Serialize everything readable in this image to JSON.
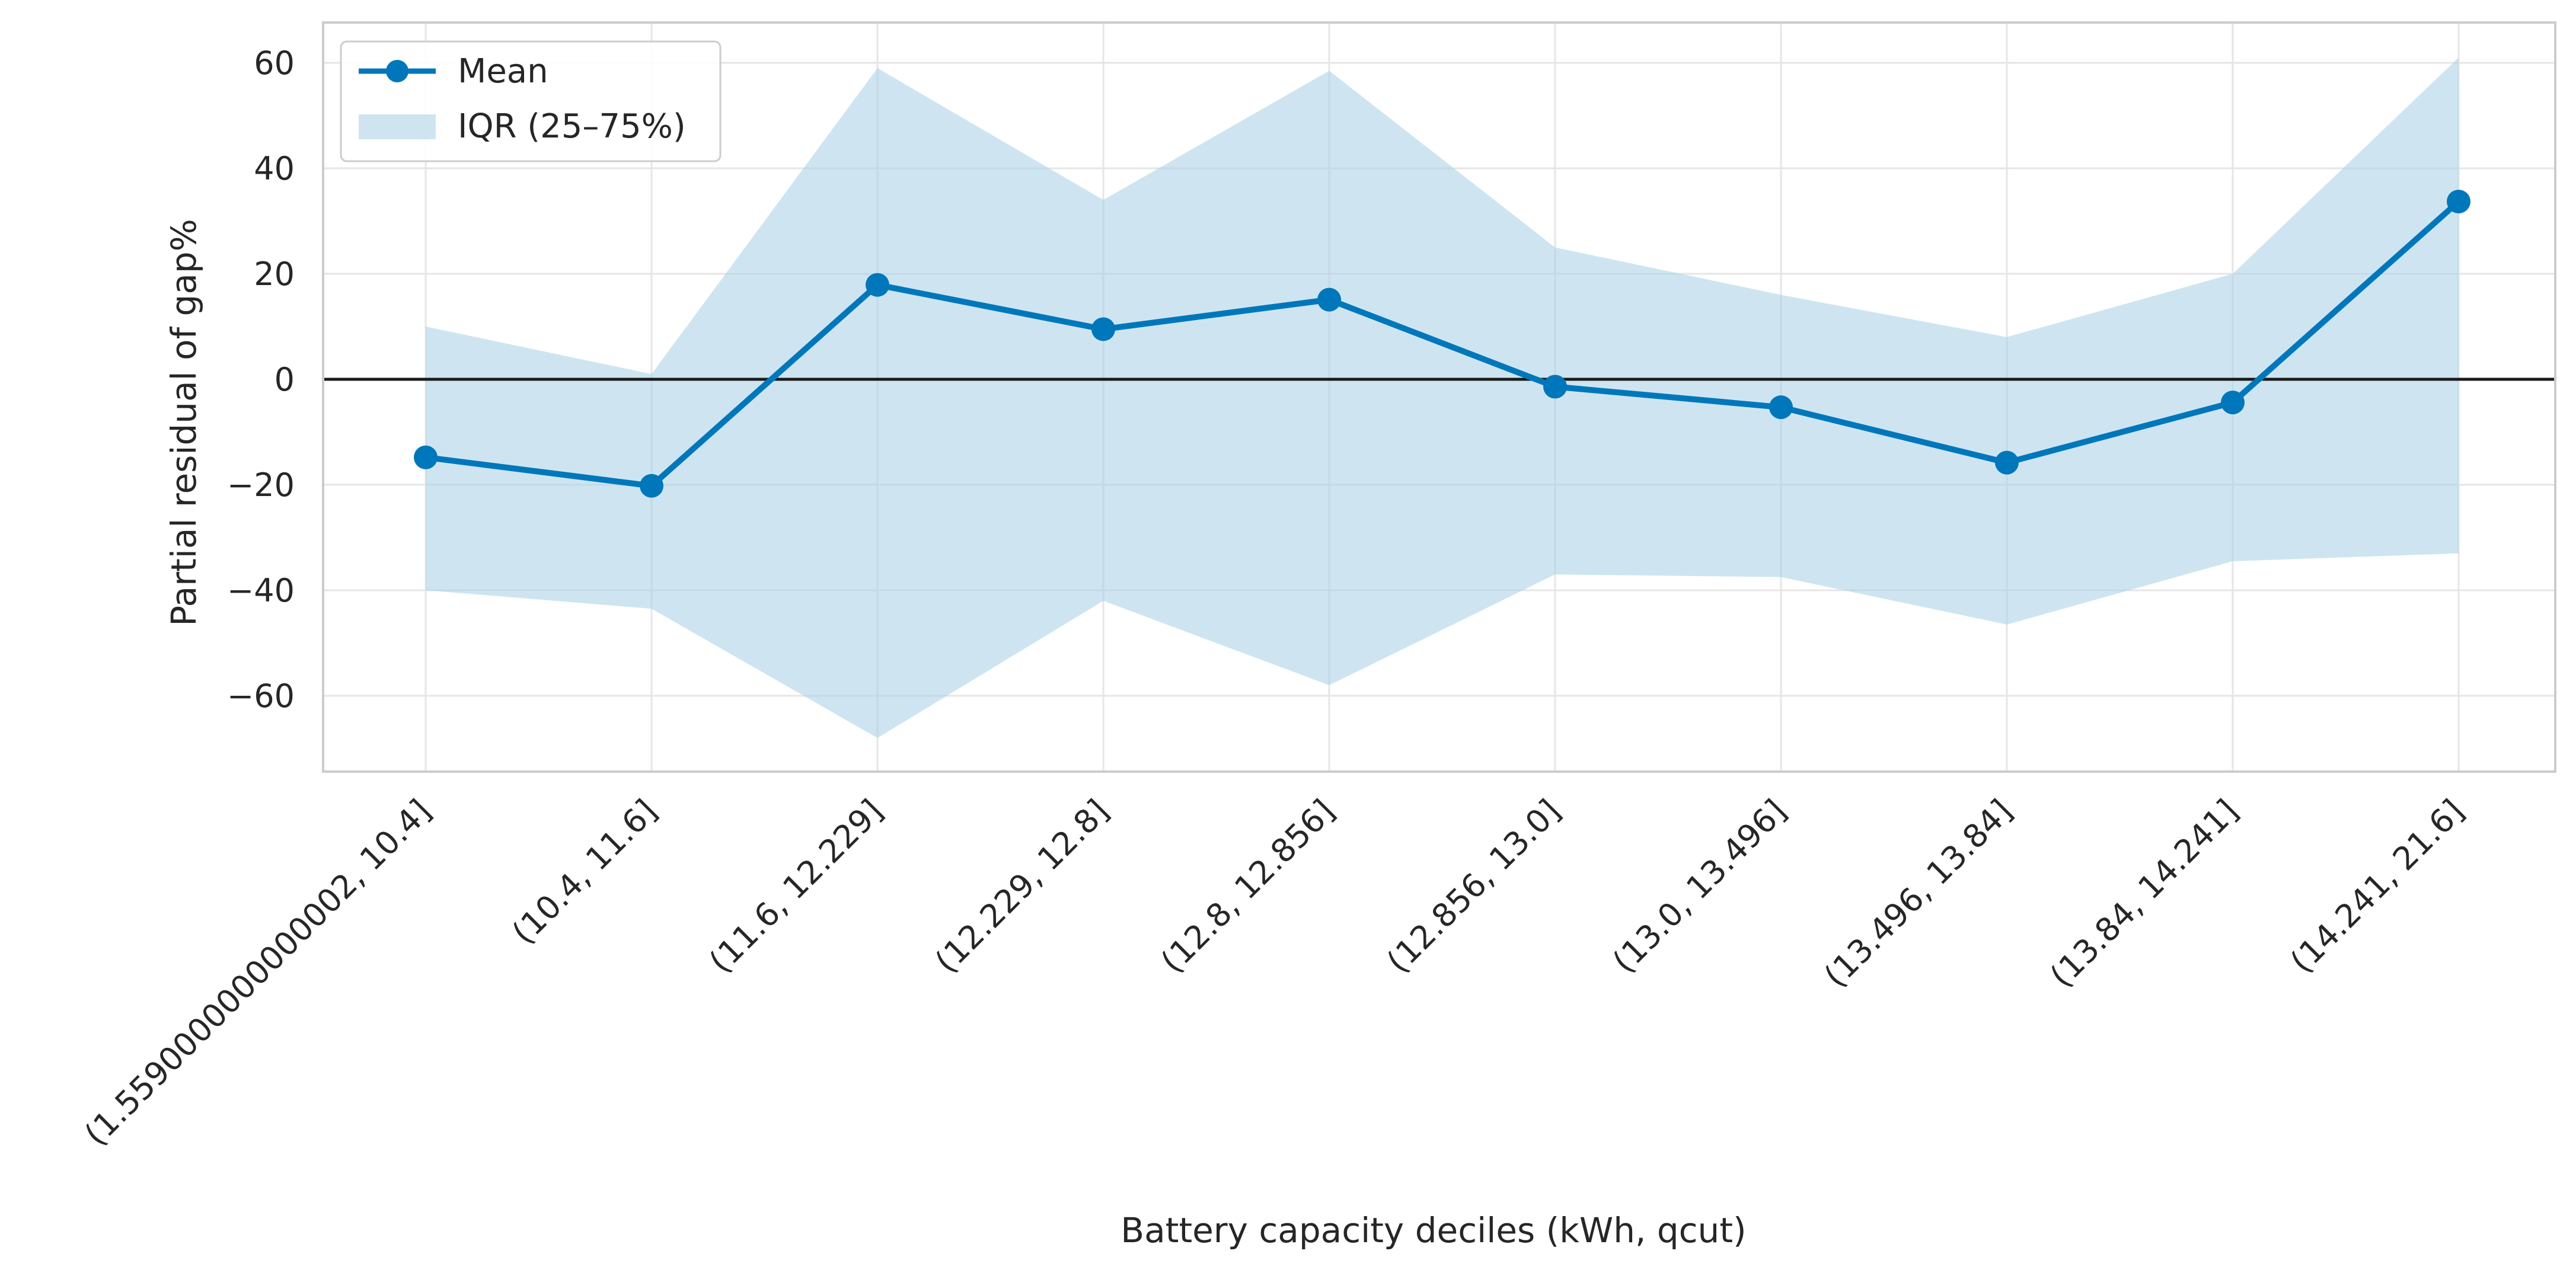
{
  "chart_data": {
    "type": "line",
    "xlabel": "Battery capacity deciles (kWh, qcut)",
    "ylabel": "Partial residual of gap%",
    "categories": [
      "(1.5590000000000002, 10.4]",
      "(10.4, 11.6]",
      "(11.6, 12.229]",
      "(12.229, 12.8]",
      "(12.8, 12.856]",
      "(12.856, 13.0]",
      "(13.0, 13.496]",
      "(13.496, 13.84]",
      "(13.84, 14.241]",
      "(14.241, 21.6]"
    ],
    "series": [
      {
        "name": "Mean",
        "values": [
          -14.8,
          -20.2,
          17.9,
          9.5,
          15.1,
          -1.4,
          -5.3,
          -15.8,
          -4.4,
          33.7
        ]
      }
    ],
    "band": {
      "name": "IQR (25–75%)",
      "q25": [
        -40.0,
        -43.5,
        -68.0,
        -42.0,
        -58.0,
        -37.0,
        -37.5,
        -46.5,
        -34.5,
        -33.0
      ],
      "q75": [
        10.0,
        1.0,
        59.0,
        34.0,
        58.5,
        25.0,
        16.0,
        8.0,
        20.0,
        61.0
      ]
    },
    "yticks": [
      -60,
      -40,
      -20,
      0,
      20,
      40,
      60
    ],
    "ylim": [
      -75,
      67
    ],
    "reference_line_y": 0,
    "grid": true,
    "legend_position": "upper-left",
    "colors": {
      "line": "#0077bb",
      "band": "#a6cfe6",
      "reference": "#1a1a1a",
      "grid": "#e6e6e6",
      "frame": "#cccccc"
    }
  }
}
